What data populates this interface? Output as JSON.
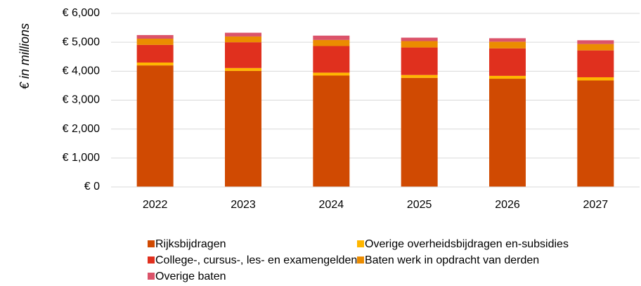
{
  "chart_data": {
    "type": "stacked_bar",
    "y_label": "€ in millions",
    "categories": [
      "2022",
      "2023",
      "2024",
      "2025",
      "2026",
      "2027"
    ],
    "series": [
      {
        "name": "Rijksbijdragen",
        "color": "#D04A02",
        "values": [
          4200,
          4010,
          3850,
          3770,
          3740,
          3680
        ]
      },
      {
        "name": "Overige overheidsbijdragen en-subsidies",
        "color": "#FFB600",
        "values": [
          100,
          100,
          100,
          100,
          100,
          110
        ]
      },
      {
        "name": "College-, cursus-, les- en examengelden",
        "color": "#E0301E",
        "values": [
          610,
          890,
          920,
          950,
          950,
          930
        ]
      },
      {
        "name": "Baten werk in opdracht van derden",
        "color": "#EB8C00",
        "values": [
          215,
          200,
          210,
          220,
          230,
          220
        ]
      },
      {
        "name": "Overige baten",
        "color": "#DB536A",
        "values": [
          125,
          130,
          150,
          120,
          120,
          130
        ]
      }
    ],
    "ylim": [
      0,
      6000
    ],
    "yticks": [
      {
        "value": 0,
        "label": "€ 0"
      },
      {
        "value": 1000,
        "label": "€ 1,000"
      },
      {
        "value": 2000,
        "label": "€ 2,000"
      },
      {
        "value": 3000,
        "label": "€ 3,000"
      },
      {
        "value": 4000,
        "label": "€ 4,000"
      },
      {
        "value": 5000,
        "label": "€ 5,000"
      },
      {
        "value": 6000,
        "label": "€ 6,000"
      }
    ],
    "grid": true
  }
}
